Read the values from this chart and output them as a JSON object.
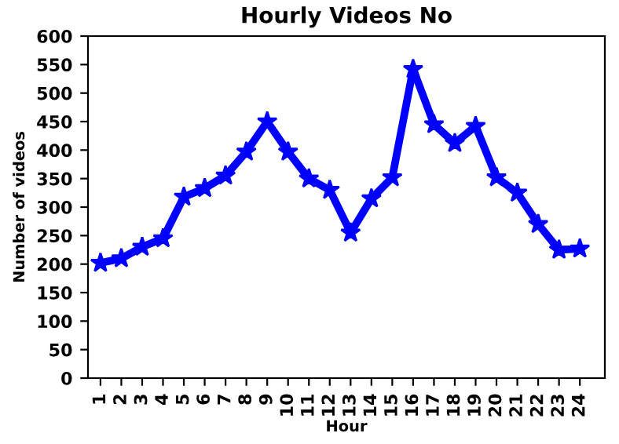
{
  "chart_data": {
    "type": "line",
    "title": "Hourly Videos No",
    "xlabel": "Hour",
    "ylabel": "Number of videos",
    "categories": [
      "1",
      "2",
      "3",
      "4",
      "5",
      "6",
      "7",
      "8",
      "9",
      "10",
      "11",
      "12",
      "13",
      "14",
      "15",
      "16",
      "17",
      "18",
      "19",
      "20",
      "21",
      "22",
      "23",
      "24"
    ],
    "series": [
      {
        "color": "#0000ff",
        "values": [
          202,
          210,
          230,
          245,
          318,
          333,
          355,
          397,
          450,
          397,
          350,
          330,
          255,
          315,
          352,
          542,
          445,
          412,
          442,
          352,
          325,
          270,
          225,
          227
        ]
      }
    ],
    "ylim": [
      0,
      600
    ],
    "yticks": [
      0,
      50,
      100,
      150,
      200,
      250,
      300,
      350,
      400,
      450,
      500,
      550,
      600
    ],
    "marker": "star",
    "line_style": "solid",
    "grid": false,
    "legend": false
  }
}
